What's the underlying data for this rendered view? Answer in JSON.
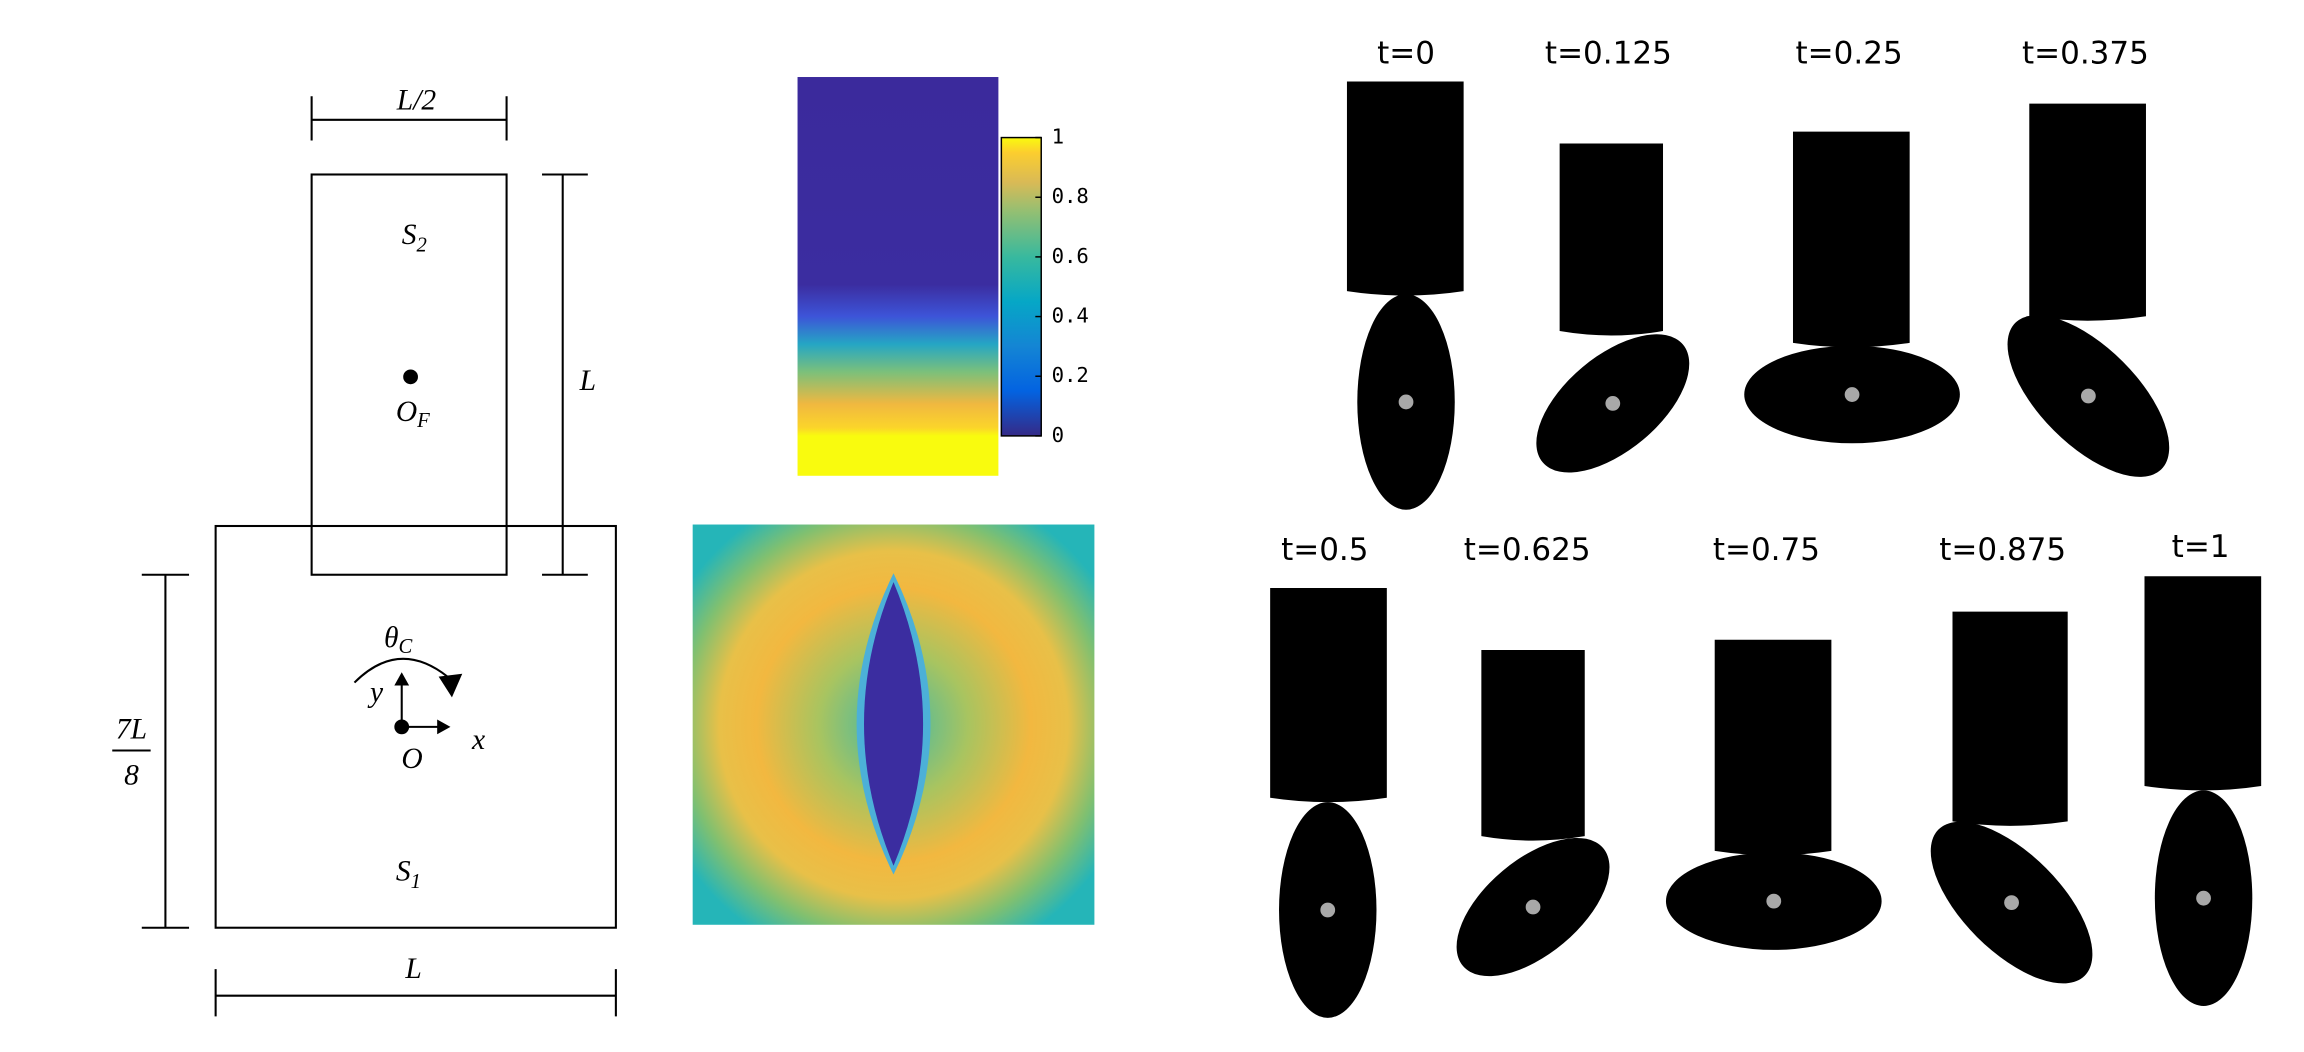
{
  "diagram": {
    "half_width_label": "L/2",
    "top_region": {
      "main": "S",
      "sub": "2"
    },
    "top_center": {
      "main": "O",
      "sub": "F"
    },
    "height_label": "L",
    "angle": {
      "main": "θ",
      "sub": "C"
    },
    "y_axis": "y",
    "x_axis": "x",
    "origin": "O",
    "offset_label": {
      "numerator": "7L",
      "denominator": "8"
    },
    "bottom_region": {
      "main": "S",
      "sub": "1"
    },
    "width_label": "L"
  },
  "colorbar": {
    "ticks": [
      0,
      0.2,
      0.4,
      0.6,
      0.8,
      1
    ]
  },
  "snapshots": [
    "t=0",
    "t=0.125",
    "t=0.25",
    "t=0.375",
    "t=0.5",
    "t=0.625",
    "t=0.75",
    "t=0.875",
    "t=1"
  ]
}
